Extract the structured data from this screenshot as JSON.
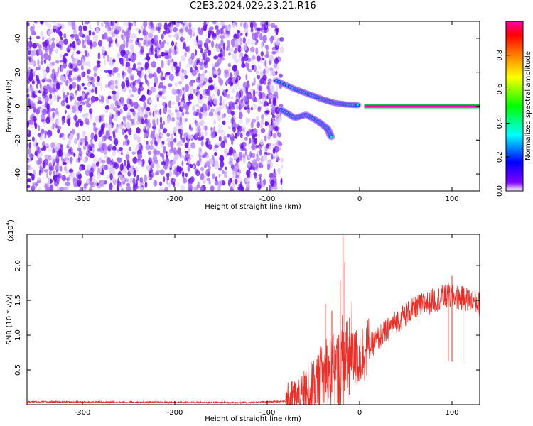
{
  "title": "C2E3.2024.029.23.21.R16",
  "chart_data": [
    {
      "type": "heatmap",
      "title": "C2E3.2024.029.23.21.R16",
      "xlabel": "Height of straight line (km)",
      "ylabel": "Frequency (Hz)",
      "xlim": [
        -360,
        130
      ],
      "ylim": [
        -50,
        50
      ],
      "x_ticks": [
        -300,
        -200,
        -100,
        0,
        100
      ],
      "y_ticks": [
        -40,
        -20,
        0,
        20,
        40
      ],
      "colorbar": {
        "label": "Normalized spectral amplitude",
        "range": [
          0,
          1
        ],
        "ticks": [
          0.0,
          0.2,
          0.4,
          0.6,
          0.8
        ],
        "colors": [
          "#ffffff",
          "#8000ff",
          "#0000ff",
          "#00ffff",
          "#00ff00",
          "#ffff00",
          "#ff8000",
          "#ff0000",
          "#ff00aa"
        ]
      },
      "regions": [
        {
          "feature": "noise",
          "x_range": [
            -360,
            -90
          ],
          "freq_range": [
            -50,
            50
          ],
          "amplitude": 0.12
        },
        {
          "feature": "tone",
          "x_range": [
            5,
            130
          ],
          "freq": 0,
          "amplitude": 0.8
        },
        {
          "feature": "branch-upper",
          "points": [
            [
              -90,
              15
            ],
            [
              -70,
              10
            ],
            [
              -55,
              7
            ],
            [
              -40,
              4
            ],
            [
              -28,
              2
            ],
            [
              -15,
              1
            ],
            [
              0,
              0.5
            ]
          ],
          "amplitude": 0.35
        },
        {
          "feature": "branch-lower",
          "points": [
            [
              -85,
              -2
            ],
            [
              -70,
              -7
            ],
            [
              -58,
              -5
            ],
            [
              -45,
              -9
            ],
            [
              -35,
              -13
            ],
            [
              -30,
              -19
            ]
          ],
          "amplitude": 0.3
        }
      ]
    },
    {
      "type": "line",
      "xlabel": "Height of straight line (km)",
      "ylabel": "SNR (10 * v/v)",
      "scale_label": "(x10",
      "scale_exp": "4",
      "scale_close": ")",
      "xlim": [
        -360,
        130
      ],
      "ylim": [
        0,
        2.45
      ],
      "x_ticks": [
        -300,
        -200,
        -100,
        0,
        100
      ],
      "y_ticks": [
        0.5,
        1.0,
        1.5,
        2.0
      ],
      "y_tick_labels": [
        "0.5",
        "1.0",
        "1.5",
        "2.0"
      ],
      "color": "#e8302a",
      "trend": [
        [
          -360,
          0.04
        ],
        [
          -120,
          0.03
        ],
        [
          -80,
          0.05
        ],
        [
          -60,
          0.12
        ],
        [
          -50,
          0.22
        ],
        [
          -40,
          0.38
        ],
        [
          -30,
          0.45
        ],
        [
          -20,
          0.5
        ],
        [
          -10,
          0.6
        ],
        [
          0,
          0.7
        ],
        [
          10,
          0.82
        ],
        [
          20,
          0.95
        ],
        [
          30,
          1.07
        ],
        [
          40,
          1.2
        ],
        [
          50,
          1.3
        ],
        [
          60,
          1.38
        ],
        [
          70,
          1.45
        ],
        [
          80,
          1.5
        ],
        [
          90,
          1.55
        ],
        [
          100,
          1.55
        ],
        [
          110,
          1.53
        ],
        [
          120,
          1.5
        ],
        [
          130,
          1.45
        ]
      ],
      "spikes": [
        [
          -18,
          2.42
        ],
        [
          -16,
          2.05
        ],
        [
          -21,
          1.78
        ],
        [
          -37,
          1.45
        ],
        [
          -30,
          1.35
        ],
        [
          -11,
          1.25
        ],
        [
          100,
          1.85
        ],
        [
          96,
          1.76
        ],
        [
          112,
          1.72
        ]
      ]
    }
  ]
}
